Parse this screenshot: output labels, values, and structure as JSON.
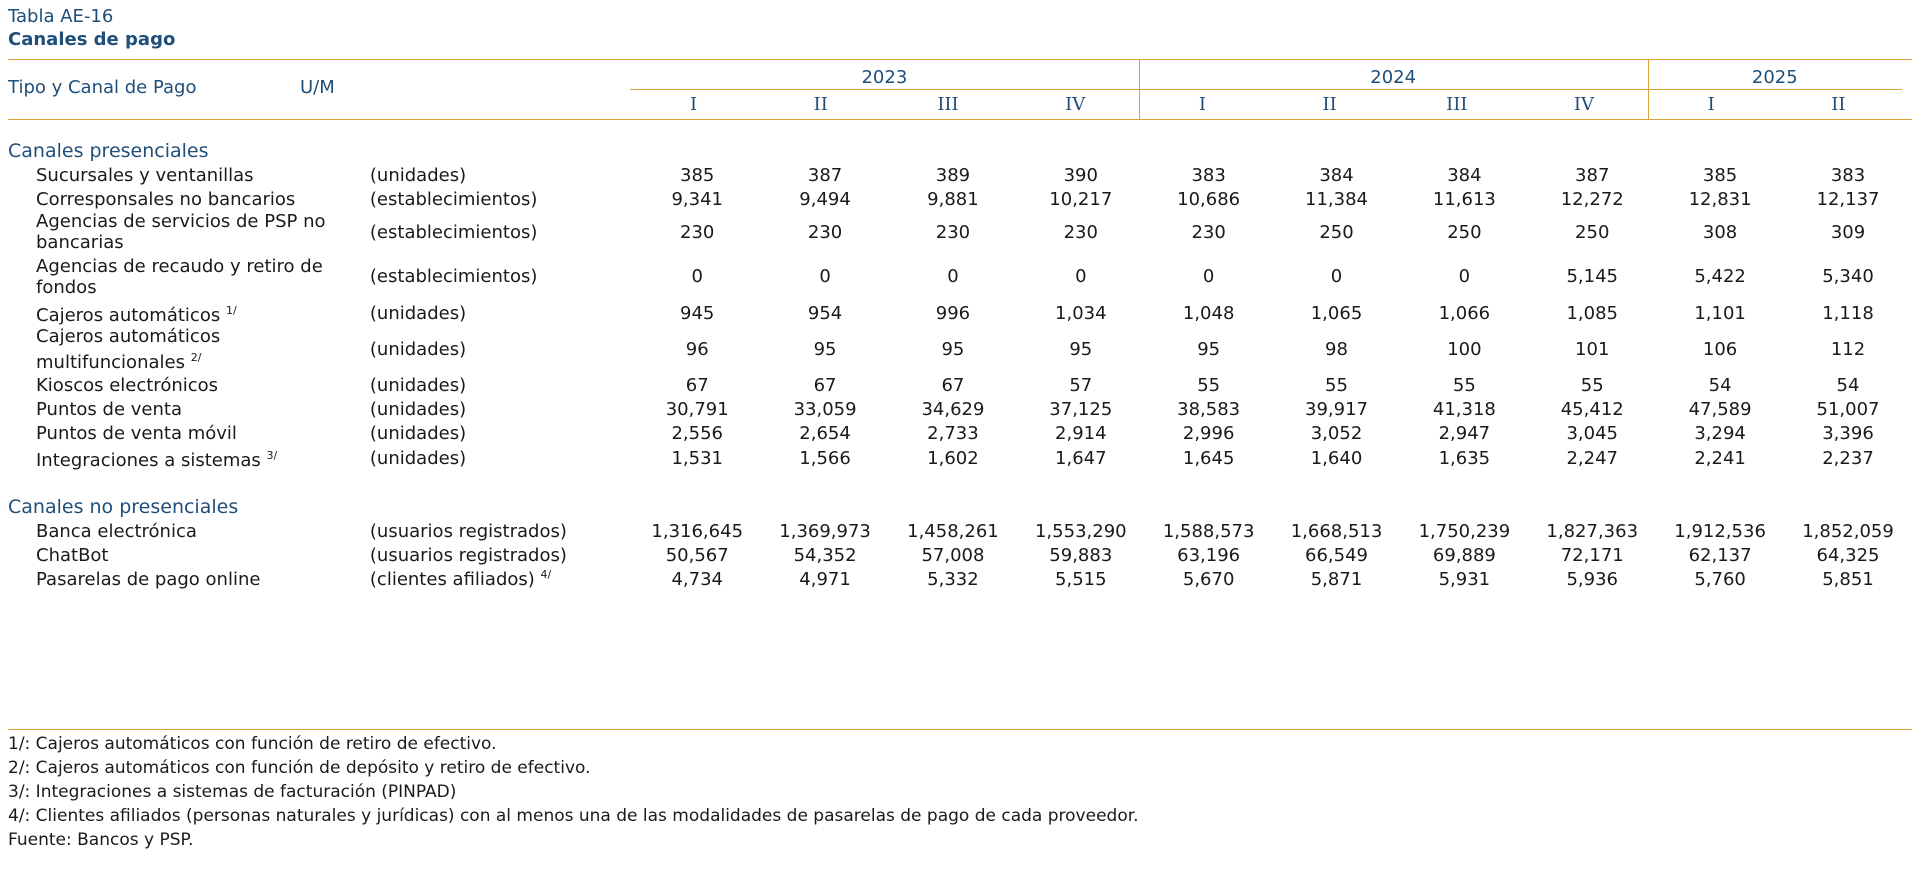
{
  "table_id": "Tabla AE-16",
  "title": "Canales de pago",
  "header": {
    "col_type": "Tipo y Canal de Pago",
    "col_um": "U/M",
    "years": [
      {
        "label": "2023",
        "quarters": [
          "I",
          "II",
          "III",
          "IV"
        ]
      },
      {
        "label": "2024",
        "quarters": [
          "I",
          "II",
          "III",
          "IV"
        ]
      },
      {
        "label": "2025",
        "quarters": [
          "I",
          "II"
        ]
      }
    ]
  },
  "sections": [
    {
      "title": "Canales presenciales",
      "rows": [
        {
          "name": "Sucursales y ventanillas",
          "note": "",
          "um": "(unidades)",
          "um_note": "",
          "values": [
            "385",
            "387",
            "389",
            "390",
            "383",
            "384",
            "384",
            "387",
            "385",
            "383"
          ]
        },
        {
          "name": "Corresponsales no bancarios",
          "note": "",
          "um": "(establecimientos)",
          "um_note": "",
          "values": [
            "9,341",
            "9,494",
            "9,881",
            "10,217",
            "10,686",
            "11,384",
            "11,613",
            "12,272",
            "12,831",
            "12,137"
          ]
        },
        {
          "name": "Agencias de servicios de PSP no bancarias",
          "note": "",
          "um": "(establecimientos)",
          "um_note": "",
          "values": [
            "230",
            "230",
            "230",
            "230",
            "230",
            "250",
            "250",
            "250",
            "308",
            "309"
          ]
        },
        {
          "name": "Agencias de recaudo y retiro de fondos",
          "note": "",
          "um": "(establecimientos)",
          "um_note": "",
          "values": [
            "0",
            "0",
            "0",
            "0",
            "0",
            "0",
            "0",
            "5,145",
            "5,422",
            "5,340"
          ]
        },
        {
          "name": "Cajeros automáticos",
          "note": "1/",
          "um": "(unidades)",
          "um_note": "",
          "values": [
            "945",
            "954",
            "996",
            "1,034",
            "1,048",
            "1,065",
            "1,066",
            "1,085",
            "1,101",
            "1,118"
          ]
        },
        {
          "name": "Cajeros automáticos multifuncionales",
          "note": "2/",
          "um": "(unidades)",
          "um_note": "",
          "values": [
            "96",
            "95",
            "95",
            "95",
            "95",
            "98",
            "100",
            "101",
            "106",
            "112"
          ]
        },
        {
          "name": "Kioscos electrónicos",
          "note": "",
          "um": "(unidades)",
          "um_note": "",
          "values": [
            "67",
            "67",
            "67",
            "57",
            "55",
            "55",
            "55",
            "55",
            "54",
            "54"
          ]
        },
        {
          "name": "Puntos de venta",
          "note": "",
          "um": "(unidades)",
          "um_note": "",
          "values": [
            "30,791",
            "33,059",
            "34,629",
            "37,125",
            "38,583",
            "39,917",
            "41,318",
            "45,412",
            "47,589",
            "51,007"
          ]
        },
        {
          "name": "Puntos de venta móvil",
          "note": "",
          "um": "(unidades)",
          "um_note": "",
          "values": [
            "2,556",
            "2,654",
            "2,733",
            "2,914",
            "2,996",
            "3,052",
            "2,947",
            "3,045",
            "3,294",
            "3,396"
          ]
        },
        {
          "name": "Integraciones a sistemas",
          "note": "3/",
          "um": "(unidades)",
          "um_note": "",
          "values": [
            "1,531",
            "1,566",
            "1,602",
            "1,647",
            "1,645",
            "1,640",
            "1,635",
            "2,247",
            "2,241",
            "2,237"
          ]
        }
      ]
    },
    {
      "title": "Canales no presenciales",
      "rows": [
        {
          "name": "Banca electrónica",
          "note": "",
          "um": "(usuarios registrados)",
          "um_note": "",
          "values": [
            "1,316,645",
            "1,369,973",
            "1,458,261",
            "1,553,290",
            "1,588,573",
            "1,668,513",
            "1,750,239",
            "1,827,363",
            "1,912,536",
            "1,852,059"
          ]
        },
        {
          "name": "ChatBot",
          "note": "",
          "um": "(usuarios registrados)",
          "um_note": "",
          "values": [
            "50,567",
            "54,352",
            "57,008",
            "59,883",
            "63,196",
            "66,549",
            "69,889",
            "72,171",
            "62,137",
            "64,325"
          ]
        },
        {
          "name": "Pasarelas de pago online",
          "note": "",
          "um": "(clientes afiliados)",
          "um_note": "4/",
          "values": [
            "4,734",
            "4,971",
            "5,332",
            "5,515",
            "5,670",
            "5,871",
            "5,931",
            "5,936",
            "5,760",
            "5,851"
          ]
        }
      ]
    }
  ],
  "footnotes": [
    "1/: Cajeros automáticos con función de retiro de efectivo.",
    "2/: Cajeros automáticos con función de depósito y retiro de efectivo.",
    "3/: Integraciones a sistemas de facturación (PINPAD)",
    "4/: Clientes afiliados (personas naturales y jurídicas) con al menos una de las modalidades de pasarelas de pago de cada proveedor.",
    "Fuente: Bancos y PSP."
  ],
  "colors": {
    "accent_line": "#d9a437",
    "heading_blue": "#1f4e79",
    "text": "#1a1a1a"
  }
}
